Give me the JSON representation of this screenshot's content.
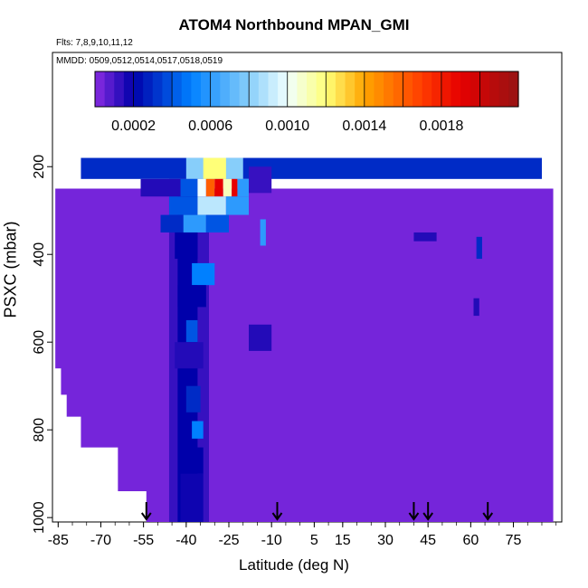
{
  "chart_data": {
    "type": "heatmap",
    "title": "ATOM4 Northbound MPAN_GMI",
    "flights_label": "Flts: 7,8,9,10,11,12",
    "dates_label": "MMDD: 0509,0512,0514,0517,0518,0519",
    "xlabel": "Latitude (deg N)",
    "ylabel": "PSXC (mbar)",
    "xlim": [
      -87,
      92
    ],
    "ylim": [
      1010,
      150
    ],
    "y_reversed": true,
    "x_ticks": [
      -85,
      -70,
      -55,
      -40,
      -25,
      -10,
      5,
      15,
      30,
      45,
      60,
      75
    ],
    "y_ticks": [
      200,
      400,
      600,
      800,
      1000
    ],
    "colorbar": {
      "min": 0.0,
      "max": 0.0022,
      "tick_values": [
        0.0002,
        0.0006,
        0.001,
        0.0014,
        0.0018
      ],
      "tick_labels": [
        "0.0002",
        "0.0006",
        "0.0010",
        "0.0014",
        "0.0018"
      ]
    },
    "background_value": 3e-05,
    "cells": [
      {
        "x": [
          -77,
          85
        ],
        "p": [
          180,
          228
        ],
        "v": 0.0003
      },
      {
        "x": [
          -40,
          -20
        ],
        "p": [
          180,
          228
        ],
        "v": 0.0008
      },
      {
        "x": [
          -34,
          -26
        ],
        "p": [
          180,
          228
        ],
        "v": 0.0012
      },
      {
        "x": [
          -56,
          -40
        ],
        "p": [
          228,
          268
        ],
        "v": 0.00015
      },
      {
        "x": [
          -42,
          -36
        ],
        "p": [
          228,
          268
        ],
        "v": 0.0004
      },
      {
        "x": [
          -36,
          -33
        ],
        "p": [
          228,
          268
        ],
        "v": 0.001
      },
      {
        "x": [
          -33,
          -30
        ],
        "p": [
          228,
          268
        ],
        "v": 0.0016
      },
      {
        "x": [
          -30,
          -27
        ],
        "p": [
          228,
          268
        ],
        "v": 0.0019
      },
      {
        "x": [
          -27,
          -24
        ],
        "p": [
          228,
          268
        ],
        "v": 0.0011
      },
      {
        "x": [
          -24,
          -22
        ],
        "p": [
          228,
          268
        ],
        "v": 0.0019
      },
      {
        "x": [
          -22,
          -18
        ],
        "p": [
          228,
          268
        ],
        "v": 0.0006
      },
      {
        "x": [
          -46,
          -36
        ],
        "p": [
          268,
          310
        ],
        "v": 0.0004
      },
      {
        "x": [
          -36,
          -26
        ],
        "p": [
          268,
          310
        ],
        "v": 0.0009
      },
      {
        "x": [
          -26,
          -18
        ],
        "p": [
          268,
          310
        ],
        "v": 0.0006
      },
      {
        "x": [
          -49,
          -41
        ],
        "p": [
          310,
          350
        ],
        "v": 0.0003
      },
      {
        "x": [
          -41,
          -33
        ],
        "p": [
          310,
          350
        ],
        "v": 0.0006
      },
      {
        "x": [
          -33,
          -25
        ],
        "p": [
          310,
          350
        ],
        "v": 0.0004
      },
      {
        "x": [
          -14,
          -12
        ],
        "p": [
          320,
          380
        ],
        "v": 0.0006
      },
      {
        "x": [
          -44,
          -36
        ],
        "p": [
          350,
          410
        ],
        "v": 0.0002
      },
      {
        "x": [
          -38,
          -30
        ],
        "p": [
          420,
          470
        ],
        "v": 0.0005
      },
      {
        "x": [
          -43,
          -33
        ],
        "p": [
          470,
          520
        ],
        "v": 0.0002
      },
      {
        "x": [
          -40,
          -36
        ],
        "p": [
          550,
          600
        ],
        "v": 0.0004
      },
      {
        "x": [
          -44,
          -34
        ],
        "p": [
          600,
          660
        ],
        "v": 0.00015
      },
      {
        "x": [
          -40,
          -35
        ],
        "p": [
          700,
          760
        ],
        "v": 0.0003
      },
      {
        "x": [
          -38,
          -34
        ],
        "p": [
          780,
          820
        ],
        "v": 0.0005
      },
      {
        "x": [
          -42,
          -34
        ],
        "p": [
          840,
          900
        ],
        "v": 0.0002
      },
      {
        "x": [
          -42,
          -34
        ],
        "p": [
          900,
          1010
        ],
        "v": 0.00018
      },
      {
        "x": [
          62,
          64
        ],
        "p": [
          360,
          410
        ],
        "v": 0.0003
      },
      {
        "x": [
          61,
          63
        ],
        "p": [
          500,
          540
        ],
        "v": 0.00015
      },
      {
        "x": [
          -18,
          -10
        ],
        "p": [
          200,
          260
        ],
        "v": 0.00012
      },
      {
        "x": [
          -18,
          -10
        ],
        "p": [
          560,
          620
        ],
        "v": 0.00015
      },
      {
        "x": [
          40,
          48
        ],
        "p": [
          350,
          370
        ],
        "v": 0.00015
      }
    ],
    "column_band": {
      "x": [
        -46,
        -32
      ],
      "p": [
        228,
        1010
      ],
      "v": 0.00012
    },
    "column_core": {
      "x": [
        -43,
        -36
      ],
      "p": [
        260,
        1010
      ],
      "v": 0.0002
    },
    "flight_dives": [
      -54,
      -8,
      40,
      45,
      66
    ]
  }
}
